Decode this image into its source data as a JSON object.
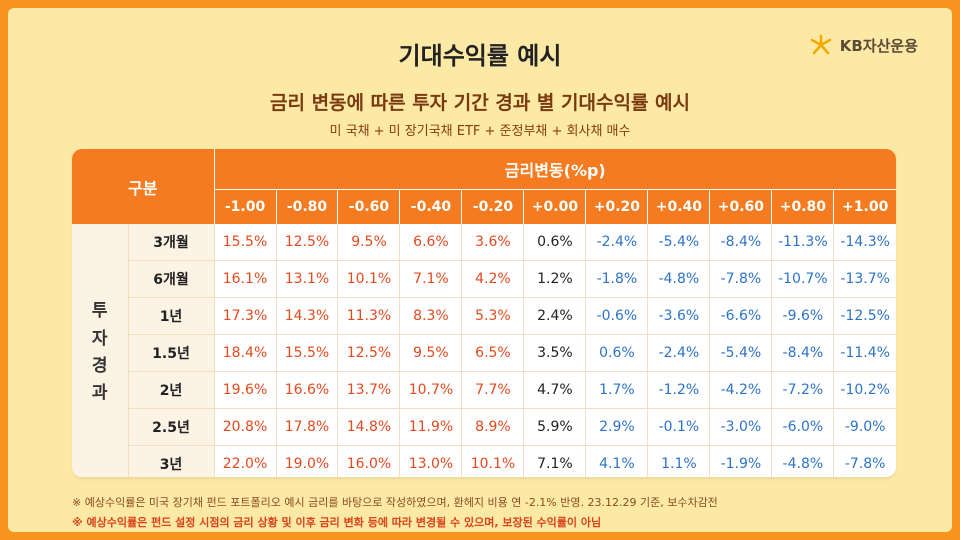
{
  "logo": {
    "text": "KB자산운용"
  },
  "header": {
    "title": "기대수익률 예시",
    "subtitle": "금리 변동에 따른 투자 기간 경과 별 기대수익률 예시",
    "description": "미 국채 + 미 장기국채 ETF + 준정부채 + 회사채 매수"
  },
  "table": {
    "corner_label": "구분",
    "group_label": "금리변동(%p)",
    "vertical_label": [
      "투",
      "자",
      "경",
      "과"
    ],
    "columns": [
      "-1.00",
      "-0.80",
      "-0.60",
      "-0.40",
      "-0.20",
      "+0.00",
      "+0.20",
      "+0.40",
      "+0.60",
      "+0.80",
      "+1.00"
    ],
    "rows": [
      {
        "label": "3개월",
        "values": [
          "15.5%",
          "12.5%",
          "9.5%",
          "6.6%",
          "3.6%",
          "0.6%",
          "-2.4%",
          "-5.4%",
          "-8.4%",
          "-11.3%",
          "-14.3%"
        ]
      },
      {
        "label": "6개월",
        "values": [
          "16.1%",
          "13.1%",
          "10.1%",
          "7.1%",
          "4.2%",
          "1.2%",
          "-1.8%",
          "-4.8%",
          "-7.8%",
          "-10.7%",
          "-13.7%"
        ]
      },
      {
        "label": "1년",
        "values": [
          "17.3%",
          "14.3%",
          "11.3%",
          "8.3%",
          "5.3%",
          "2.4%",
          "-0.6%",
          "-3.6%",
          "-6.6%",
          "-9.6%",
          "-12.5%"
        ]
      },
      {
        "label": "1.5년",
        "values": [
          "18.4%",
          "15.5%",
          "12.5%",
          "9.5%",
          "6.5%",
          "3.5%",
          "0.6%",
          "-2.4%",
          "-5.4%",
          "-8.4%",
          "-11.4%"
        ]
      },
      {
        "label": "2년",
        "values": [
          "19.6%",
          "16.6%",
          "13.7%",
          "10.7%",
          "7.7%",
          "4.7%",
          "1.7%",
          "-1.2%",
          "-4.2%",
          "-7.2%",
          "-10.2%"
        ]
      },
      {
        "label": "2.5년",
        "values": [
          "20.8%",
          "17.8%",
          "14.8%",
          "11.9%",
          "8.9%",
          "5.9%",
          "2.9%",
          "-0.1%",
          "-3.0%",
          "-6.0%",
          "-9.0%"
        ]
      },
      {
        "label": "3년",
        "values": [
          "22.0%",
          "19.0%",
          "16.0%",
          "13.0%",
          "10.1%",
          "7.1%",
          "4.1%",
          "1.1%",
          "-1.9%",
          "-4.8%",
          "-7.8%"
        ]
      }
    ],
    "colors": {
      "header_bg": "#f47b20",
      "positive": "#e34a1e",
      "neutral": "#222222",
      "negative": "#2d73c9"
    }
  },
  "footnotes": [
    "※ 예상수익률은 미국 장기채 펀드 포트폴리오 예시 금리를 바탕으로 작성하였으며, 환헤지 비용 연 -2.1% 반영. 23.12.29 기준, 보수차감전",
    "※ 예상수익률은 펀드 설정 시점의 금리 상황 및 이후 금리 변화 등에 따라 변경될 수 있으며, 보장된 수익률이 아님"
  ],
  "theme": {
    "background": "#f7931e",
    "card": "#fde9a6"
  }
}
